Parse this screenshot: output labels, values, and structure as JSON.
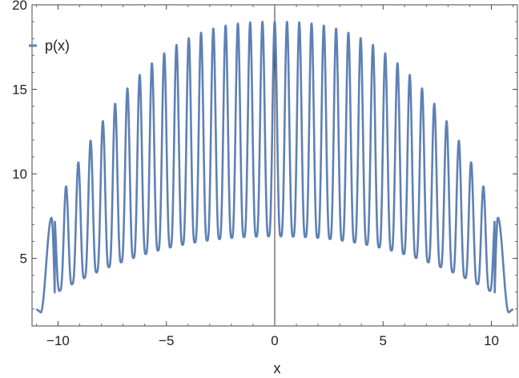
{
  "chart_data": {
    "type": "line",
    "title": "",
    "xlabel": "x",
    "ylabel": "",
    "xlim": [
      -11.2,
      11.2
    ],
    "ylim": [
      1.0,
      20.0
    ],
    "x_ticks": [
      -10,
      -5,
      0,
      5,
      10
    ],
    "x_tick_labels": [
      "−10",
      "−5",
      "0",
      "5",
      "10"
    ],
    "y_ticks": [
      5,
      10,
      15,
      20
    ],
    "y_tick_labels": [
      "5",
      "10",
      "15",
      "20"
    ],
    "grid": false,
    "frame": true,
    "legend_position": "top-left",
    "series": [
      {
        "name": "p(x)",
        "color": "#5e81b5",
        "x_range": [
          -11,
          11
        ],
        "description_of_shape": "rapid oscillation with ~36 peaks per side; peak envelope rises from about 7.4 at x=±10.3 to about 19 at x=0; trough envelope rises from about 2.8 at x=±10 to about 6.3 at x=0; curve falls to about 1.8 at x=±10.8 and ends near 2 at x=±11",
        "key_points": [
          {
            "x": -11.0,
            "y": 2.0
          },
          {
            "x": -10.8,
            "y": 1.8
          },
          {
            "x": -10.3,
            "y": 7.4
          },
          {
            "x": -10.0,
            "y": 2.8
          },
          {
            "x": -9.5,
            "y": 9.6
          },
          {
            "x": -9.0,
            "y": 11.5
          },
          {
            "x": -8.0,
            "y": 13.7
          },
          {
            "x": -6.0,
            "y": 16.3
          },
          {
            "x": -4.0,
            "y": 17.7
          },
          {
            "x": -2.0,
            "y": 18.6
          },
          {
            "x": 0.0,
            "y": 19.0
          },
          {
            "x": 2.0,
            "y": 18.6
          },
          {
            "x": 4.0,
            "y": 17.7
          },
          {
            "x": 6.0,
            "y": 16.3
          },
          {
            "x": 8.0,
            "y": 13.7
          },
          {
            "x": 9.0,
            "y": 11.5
          },
          {
            "x": 9.5,
            "y": 9.6
          },
          {
            "x": 10.0,
            "y": 2.8
          },
          {
            "x": 10.3,
            "y": 7.4
          },
          {
            "x": 10.8,
            "y": 1.8
          },
          {
            "x": 11.0,
            "y": 2.0
          }
        ]
      }
    ]
  }
}
